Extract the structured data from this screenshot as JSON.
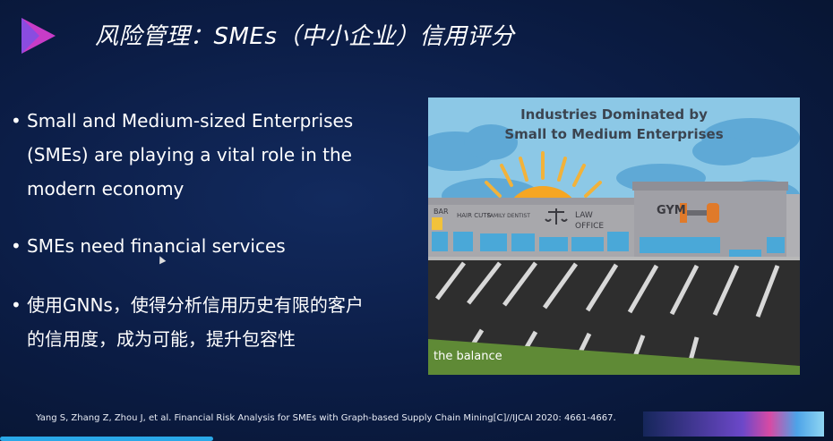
{
  "title": "风险管理：SMEs（中小企业）信用评分",
  "bullets": [
    {
      "line1": "Small and Medium-sized Enterprises",
      "line2": "(SMEs) are playing a vital role in the",
      "line3": "modern economy"
    },
    {
      "line1": "SMEs need financial services"
    },
    {
      "line1": "使用GNNs，使得分析信用历史有限的客户",
      "line2": "的信用度，成为可能，提升包容性"
    }
  ],
  "bullet_symbol": "•",
  "video": {
    "title_line1": "Industries Dominated by",
    "title_line2": "Small to Medium Enterprises",
    "caption": "the balance",
    "signs": [
      "BAR",
      "HAIR CUTS",
      "FAMILY DENTIST",
      "LAW",
      "OFFICE",
      "GYM"
    ]
  },
  "citation": "Yang S, Zhang Z, Zhou J, et al. Financial Risk Analysis for SMEs with Graph-based Supply Chain Mining[C]//IJCAI 2020: 4661-4667.",
  "colors": {
    "accent": "#2aa8e8",
    "logo": "#c83cc8",
    "background": "#0b1c44"
  }
}
